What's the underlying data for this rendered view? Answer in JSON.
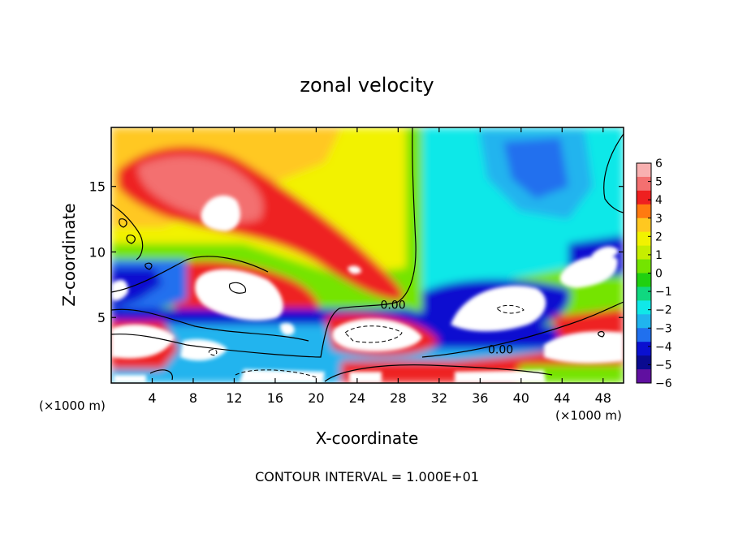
{
  "chart_data": {
    "type": "heatmap",
    "title": "zonal velocity",
    "xlabel": "X-coordinate",
    "ylabel": "Z-coordinate",
    "x_unit_label": "(×1000 m)",
    "x_unit_label_right": "(×1000 m)",
    "x_ticks": [
      4,
      8,
      12,
      16,
      20,
      24,
      28,
      32,
      36,
      40,
      44,
      48
    ],
    "xlim": [
      0,
      50
    ],
    "y_ticks": [
      5,
      10,
      15
    ],
    "ylim": [
      0,
      19.5
    ],
    "colorbar_ticks": [
      6,
      5,
      4,
      3,
      2,
      1,
      0,
      -1,
      -2,
      -3,
      -4,
      -5,
      -6
    ],
    "colorbar_range": [
      -6,
      6
    ],
    "colorbar_colors": [
      "#f8b0b0",
      "#f37070",
      "#ee2020",
      "#ff7a10",
      "#ffc820",
      "#f2f200",
      "#c6ee00",
      "#74e400",
      "#20d010",
      "#10d880",
      "#10e8e8",
      "#20b4ee",
      "#2070ee",
      "#0a10d0",
      "#0a0a90",
      "#6010a0"
    ],
    "contour_labels": [
      {
        "text": "0.00",
        "x": 27.5,
        "z": 5.9
      },
      {
        "text": "0.00",
        "x": 38.0,
        "z": 2.5
      }
    ],
    "footer": "CONTOUR INTERVAL = 1.000E+01"
  }
}
